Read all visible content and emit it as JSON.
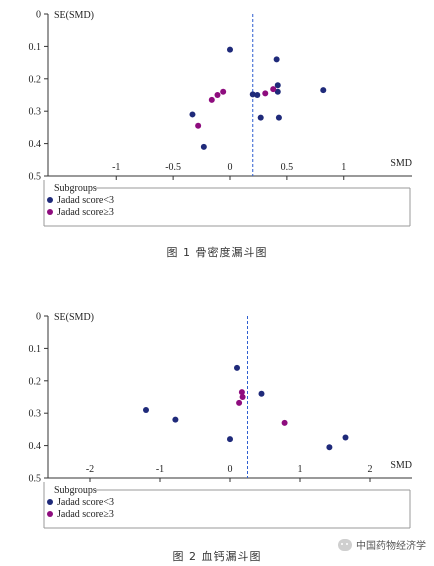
{
  "colors": {
    "low": "#1f2a7a",
    "high": "#8e0c7e",
    "ref_line": "#2f5fd0",
    "axis": "#333333"
  },
  "figures": [
    {
      "caption": "图 1    骨密度漏斗图"
    },
    {
      "caption": "图 2    血钙漏斗图"
    }
  ],
  "watermark": {
    "text": "中国药物经济学",
    "icon": "wechat-icon"
  },
  "chart_data": [
    {
      "type": "scatter",
      "title": "",
      "xlabel": "SMD",
      "ylabel": "SE(SMD)",
      "xlim": [
        -1.6,
        1.6
      ],
      "ylim": [
        0,
        0.5
      ],
      "y_reversed": true,
      "xticks": [
        -1,
        -0.5,
        0,
        0.5,
        1
      ],
      "xtick_labels": [
        "-1",
        "-0.5",
        "0",
        "0.5",
        "1"
      ],
      "yticks": [
        0,
        0.1,
        0.2,
        0.3,
        0.4,
        0.5
      ],
      "ytick_labels": [
        "0",
        "0.1",
        "0.2",
        "0.3",
        "0.4",
        "0.5"
      ],
      "reference_line_x": 0.2,
      "legend": {
        "title": "Subgroups",
        "placement": "bottom",
        "entries": [
          "Jadad score<3",
          "Jadad score≥3"
        ]
      },
      "series": [
        {
          "name": "Jadad score<3",
          "points": [
            {
              "x": 0.0,
              "y": 0.11
            },
            {
              "x": 0.41,
              "y": 0.14
            },
            {
              "x": 0.42,
              "y": 0.22
            },
            {
              "x": 0.82,
              "y": 0.235
            },
            {
              "x": 0.42,
              "y": 0.24
            },
            {
              "x": 0.2,
              "y": 0.248
            },
            {
              "x": 0.24,
              "y": 0.25
            },
            {
              "x": -0.33,
              "y": 0.31
            },
            {
              "x": 0.27,
              "y": 0.32
            },
            {
              "x": 0.43,
              "y": 0.32
            },
            {
              "x": -0.23,
              "y": 0.41
            }
          ]
        },
        {
          "name": "Jadad score≥3",
          "points": [
            {
              "x": -0.06,
              "y": 0.24
            },
            {
              "x": -0.11,
              "y": 0.25
            },
            {
              "x": -0.16,
              "y": 0.265
            },
            {
              "x": 0.31,
              "y": 0.245
            },
            {
              "x": 0.38,
              "y": 0.232
            },
            {
              "x": -0.28,
              "y": 0.345
            }
          ]
        }
      ]
    },
    {
      "type": "scatter",
      "title": "",
      "xlabel": "SMD",
      "ylabel": "SE(SMD)",
      "xlim": [
        -2.6,
        2.6
      ],
      "ylim": [
        0,
        0.5
      ],
      "y_reversed": true,
      "xticks": [
        -2,
        -1,
        0,
        1,
        2
      ],
      "xtick_labels": [
        "-2",
        "-1",
        "0",
        "1",
        "2"
      ],
      "yticks": [
        0,
        0.1,
        0.2,
        0.3,
        0.4,
        0.5
      ],
      "ytick_labels": [
        "0",
        "0.1",
        "0.2",
        "0.3",
        "0.4",
        "0.5"
      ],
      "reference_line_x": 0.25,
      "legend": {
        "title": "Subgroups",
        "placement": "bottom",
        "entries": [
          "Jadad score<3",
          "Jadad score≥3"
        ]
      },
      "series": [
        {
          "name": "Jadad score<3",
          "points": [
            {
              "x": 0.1,
              "y": 0.16
            },
            {
              "x": 0.45,
              "y": 0.24
            },
            {
              "x": -1.2,
              "y": 0.29
            },
            {
              "x": -0.78,
              "y": 0.32
            },
            {
              "x": 0.0,
              "y": 0.38
            },
            {
              "x": 1.65,
              "y": 0.375
            },
            {
              "x": 1.42,
              "y": 0.405
            }
          ]
        },
        {
          "name": "Jadad score≥3",
          "points": [
            {
              "x": 0.17,
              "y": 0.235
            },
            {
              "x": 0.18,
              "y": 0.25
            },
            {
              "x": 0.13,
              "y": 0.268
            },
            {
              "x": 0.78,
              "y": 0.33
            }
          ]
        }
      ]
    }
  ]
}
